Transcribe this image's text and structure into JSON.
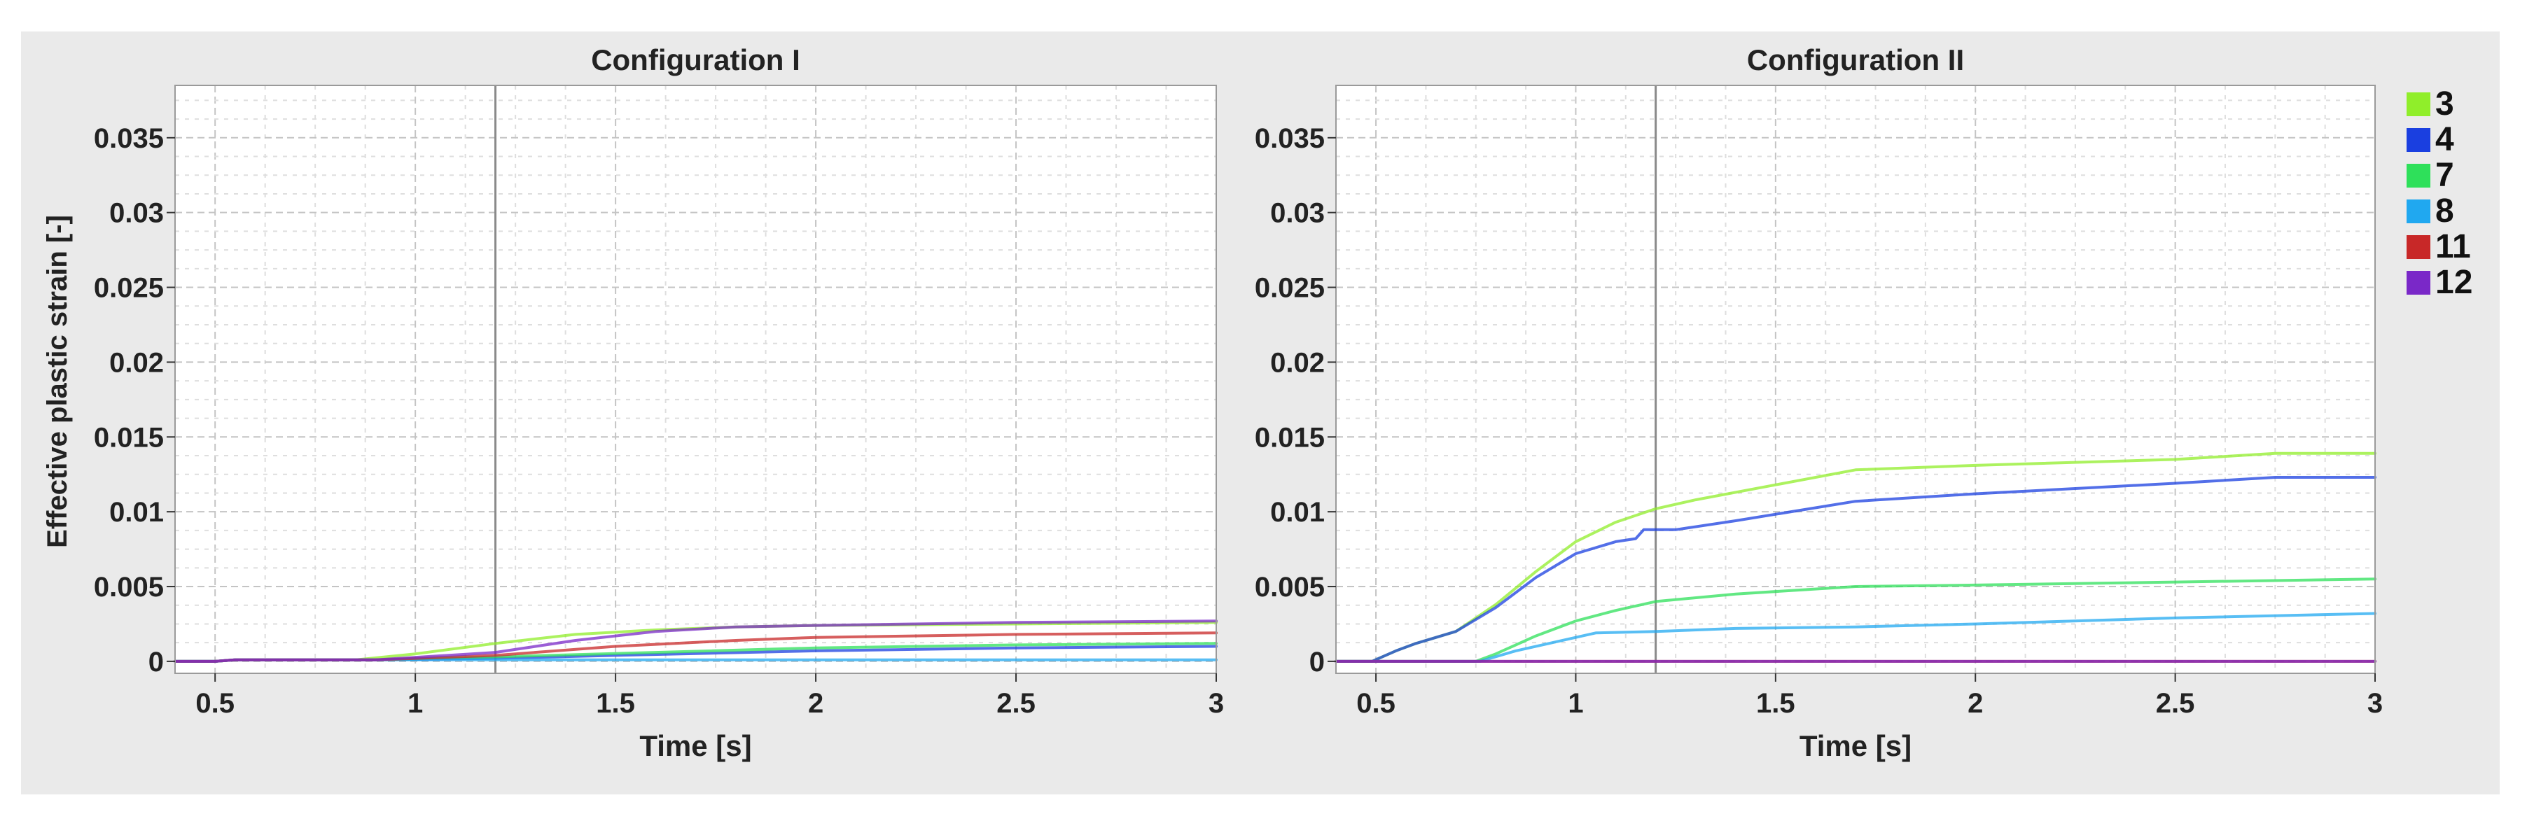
{
  "figure": {
    "ylabel": "Effective plastic strain [-]"
  },
  "legend": {
    "items": [
      {
        "label": "3",
        "color": "#90ee2a"
      },
      {
        "label": "4",
        "color": "#1a3fe0"
      },
      {
        "label": "7",
        "color": "#2ee05a"
      },
      {
        "label": "8",
        "color": "#20a8f0"
      },
      {
        "label": "11",
        "color": "#c82828"
      },
      {
        "label": "12",
        "color": "#7a28c8"
      }
    ]
  },
  "chart_data": [
    {
      "type": "line",
      "title": "Configuration I",
      "xlabel": "Time [s]",
      "ylabel": "Effective plastic strain [-]",
      "xlim": [
        0.4,
        3
      ],
      "ylim": [
        -0.0008,
        0.0385
      ],
      "xticks": [
        0.5,
        1,
        1.5,
        2,
        2.5,
        3
      ],
      "xtick_labels": [
        "0.5",
        "1",
        "1.5",
        "2",
        "2.5",
        "3"
      ],
      "yticks": [
        0,
        0.005,
        0.01,
        0.015,
        0.02,
        0.025,
        0.03,
        0.035
      ],
      "ytick_labels": [
        "0",
        "0.005",
        "0.01",
        "0.015",
        "0.02",
        "0.025",
        "0.03",
        "0.035"
      ],
      "grid": true,
      "vline_x": 1.2,
      "series": [
        {
          "name": "3",
          "color": "#90ee2a",
          "points": [
            [
              0.4,
              0
            ],
            [
              0.5,
              0
            ],
            [
              0.55,
              0.0001
            ],
            [
              0.85,
              0.0001
            ],
            [
              1.0,
              0.0005
            ],
            [
              1.2,
              0.0012
            ],
            [
              1.4,
              0.0018
            ],
            [
              1.6,
              0.0021
            ],
            [
              1.8,
              0.0023
            ],
            [
              2.0,
              0.0024
            ],
            [
              2.5,
              0.0025
            ],
            [
              3.0,
              0.0026
            ]
          ]
        },
        {
          "name": "4",
          "color": "#1a3fe0",
          "points": [
            [
              0.4,
              0
            ],
            [
              0.5,
              0
            ],
            [
              0.55,
              0.0001
            ],
            [
              0.9,
              0.0001
            ],
            [
              1.2,
              0.0002
            ],
            [
              1.5,
              0.0004
            ],
            [
              2.0,
              0.0007
            ],
            [
              2.5,
              0.0009
            ],
            [
              3.0,
              0.001
            ]
          ]
        },
        {
          "name": "7",
          "color": "#2ee05a",
          "points": [
            [
              0.4,
              0
            ],
            [
              0.5,
              0
            ],
            [
              0.55,
              0.0001
            ],
            [
              0.9,
              0.0001
            ],
            [
              1.2,
              0.0003
            ],
            [
              1.6,
              0.0006
            ],
            [
              2.0,
              0.0009
            ],
            [
              2.5,
              0.0011
            ],
            [
              3.0,
              0.0012
            ]
          ]
        },
        {
          "name": "8",
          "color": "#20a8f0",
          "points": [
            [
              0.4,
              0
            ],
            [
              0.5,
              0
            ],
            [
              0.55,
              0.0001
            ],
            [
              0.9,
              0.0001
            ],
            [
              1.3,
              0.0001
            ],
            [
              3.0,
              0.0001
            ]
          ]
        },
        {
          "name": "11",
          "color": "#c82828",
          "points": [
            [
              0.4,
              0
            ],
            [
              0.5,
              0
            ],
            [
              0.55,
              0.0001
            ],
            [
              0.9,
              0.0001
            ],
            [
              1.2,
              0.0004
            ],
            [
              1.5,
              0.001
            ],
            [
              1.8,
              0.0014
            ],
            [
              2.0,
              0.0016
            ],
            [
              2.5,
              0.0018
            ],
            [
              3.0,
              0.0019
            ]
          ]
        },
        {
          "name": "12",
          "color": "#7a28c8",
          "points": [
            [
              0.4,
              0
            ],
            [
              0.5,
              0
            ],
            [
              0.55,
              0.0001
            ],
            [
              0.9,
              0.0001
            ],
            [
              1.2,
              0.0006
            ],
            [
              1.4,
              0.0014
            ],
            [
              1.6,
              0.002
            ],
            [
              1.8,
              0.0023
            ],
            [
              2.0,
              0.0024
            ],
            [
              2.5,
              0.0026
            ],
            [
              3.0,
              0.0027
            ]
          ]
        }
      ]
    },
    {
      "type": "line",
      "title": "Configuration II",
      "xlabel": "Time [s]",
      "ylabel": "",
      "xlim": [
        0.4,
        3
      ],
      "ylim": [
        -0.0008,
        0.0385
      ],
      "xticks": [
        0.5,
        1,
        1.5,
        2,
        2.5,
        3
      ],
      "xtick_labels": [
        "0.5",
        "1",
        "1.5",
        "2",
        "2.5",
        "3"
      ],
      "yticks": [
        0,
        0.005,
        0.01,
        0.015,
        0.02,
        0.025,
        0.03,
        0.035
      ],
      "ytick_labels": [
        "0",
        "0.005",
        "0.01",
        "0.015",
        "0.02",
        "0.025",
        "0.03",
        "0.035"
      ],
      "grid": true,
      "vline_x": 1.2,
      "series": [
        {
          "name": "3",
          "color": "#90ee2a",
          "points": [
            [
              0.4,
              0
            ],
            [
              0.49,
              0
            ],
            [
              0.55,
              0.0007
            ],
            [
              0.6,
              0.0012
            ],
            [
              0.7,
              0.002
            ],
            [
              0.8,
              0.0038
            ],
            [
              0.9,
              0.006
            ],
            [
              1.0,
              0.008
            ],
            [
              1.1,
              0.0093
            ],
            [
              1.2,
              0.0102
            ],
            [
              1.3,
              0.0108
            ],
            [
              1.5,
              0.0118
            ],
            [
              1.7,
              0.0128
            ],
            [
              2.0,
              0.0131
            ],
            [
              2.5,
              0.0135
            ],
            [
              2.75,
              0.0139
            ],
            [
              3.0,
              0.0139
            ]
          ]
        },
        {
          "name": "4",
          "color": "#1a3fe0",
          "points": [
            [
              0.4,
              0
            ],
            [
              0.49,
              0
            ],
            [
              0.55,
              0.0007
            ],
            [
              0.6,
              0.0012
            ],
            [
              0.7,
              0.002
            ],
            [
              0.8,
              0.0036
            ],
            [
              0.9,
              0.0056
            ],
            [
              1.0,
              0.0072
            ],
            [
              1.1,
              0.008
            ],
            [
              1.15,
              0.0082
            ],
            [
              1.17,
              0.0088
            ],
            [
              1.25,
              0.0088
            ],
            [
              1.4,
              0.0094
            ],
            [
              1.7,
              0.0107
            ],
            [
              2.0,
              0.0112
            ],
            [
              2.5,
              0.0119
            ],
            [
              2.75,
              0.0123
            ],
            [
              3.0,
              0.0123
            ]
          ]
        },
        {
          "name": "7",
          "color": "#2ee05a",
          "points": [
            [
              0.4,
              0
            ],
            [
              0.75,
              0
            ],
            [
              0.8,
              0.0005
            ],
            [
              0.9,
              0.0017
            ],
            [
              1.0,
              0.0027
            ],
            [
              1.1,
              0.0034
            ],
            [
              1.2,
              0.004
            ],
            [
              1.4,
              0.0045
            ],
            [
              1.7,
              0.005
            ],
            [
              2.0,
              0.0051
            ],
            [
              2.5,
              0.0053
            ],
            [
              3.0,
              0.0055
            ]
          ]
        },
        {
          "name": "8",
          "color": "#20a8f0",
          "points": [
            [
              0.4,
              0
            ],
            [
              0.76,
              0
            ],
            [
              0.85,
              0.0007
            ],
            [
              1.0,
              0.0016
            ],
            [
              1.05,
              0.0019
            ],
            [
              1.2,
              0.002
            ],
            [
              1.4,
              0.0022
            ],
            [
              1.7,
              0.0023
            ],
            [
              2.0,
              0.0025
            ],
            [
              2.5,
              0.0029
            ],
            [
              3.0,
              0.0032
            ]
          ]
        },
        {
          "name": "11",
          "color": "#c82828",
          "points": [
            [
              0.4,
              0
            ],
            [
              3.0,
              0
            ]
          ]
        },
        {
          "name": "12",
          "color": "#7a28c8",
          "points": [
            [
              0.4,
              0
            ],
            [
              3.0,
              0
            ]
          ]
        }
      ]
    }
  ]
}
